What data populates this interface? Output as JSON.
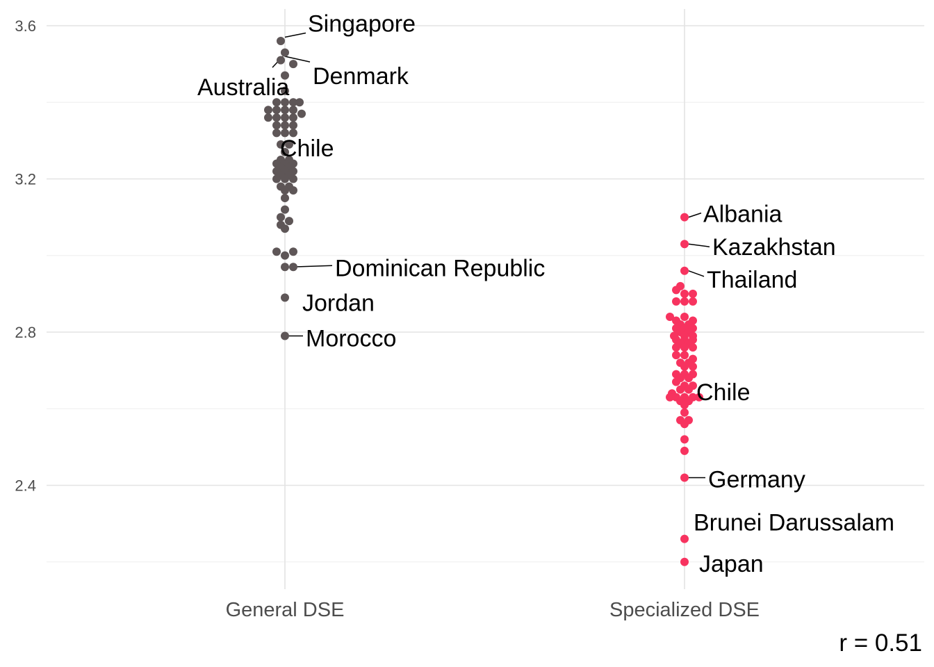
{
  "chart_data": {
    "type": "scatter",
    "categories": [
      "General DSE",
      "Specialized DSE"
    ],
    "ylim": [
      2.18,
      3.62
    ],
    "y_ticks": [
      "2.4",
      "2.8",
      "3.2",
      "3.6"
    ],
    "y_tick_values": [
      2.4,
      2.8,
      3.2,
      3.6
    ],
    "grid": true,
    "legend": "none",
    "colors": {
      "General DSE": "#5e5657",
      "Specialized DSE": "#f7335f"
    },
    "series": [
      {
        "category": "General DSE",
        "points": [
          [
            -0.01,
            3.56
          ],
          [
            0.0,
            3.53
          ],
          [
            -0.01,
            3.51
          ],
          [
            0.02,
            3.5
          ],
          [
            0.0,
            3.47
          ],
          [
            0.0,
            3.43
          ],
          [
            -0.02,
            3.4
          ],
          [
            0.0,
            3.4
          ],
          [
            0.02,
            3.4
          ],
          [
            0.035,
            3.4
          ],
          [
            -0.04,
            3.38
          ],
          [
            -0.02,
            3.38
          ],
          [
            0.0,
            3.38
          ],
          [
            0.02,
            3.38
          ],
          [
            0.04,
            3.37
          ],
          [
            -0.04,
            3.36
          ],
          [
            -0.02,
            3.36
          ],
          [
            0.0,
            3.36
          ],
          [
            0.02,
            3.36
          ],
          [
            -0.02,
            3.34
          ],
          [
            0.0,
            3.34
          ],
          [
            0.02,
            3.34
          ],
          [
            -0.02,
            3.32
          ],
          [
            0.0,
            3.32
          ],
          [
            0.02,
            3.32
          ],
          [
            -0.01,
            3.29
          ],
          [
            0.01,
            3.29
          ],
          [
            0.0,
            3.27
          ],
          [
            -0.01,
            3.25
          ],
          [
            0.01,
            3.25
          ],
          [
            -0.02,
            3.24
          ],
          [
            0.0,
            3.24
          ],
          [
            0.02,
            3.24
          ],
          [
            -0.01,
            3.23
          ],
          [
            0.01,
            3.23
          ],
          [
            -0.02,
            3.22
          ],
          [
            0.0,
            3.22
          ],
          [
            0.02,
            3.22
          ],
          [
            -0.01,
            3.21
          ],
          [
            0.01,
            3.21
          ],
          [
            0.0,
            3.2
          ],
          [
            -0.02,
            3.2
          ],
          [
            0.02,
            3.2
          ],
          [
            -0.01,
            3.18
          ],
          [
            0.01,
            3.18
          ],
          [
            0.0,
            3.17
          ],
          [
            0.02,
            3.17
          ],
          [
            0.0,
            3.15
          ],
          [
            0.0,
            3.12
          ],
          [
            -0.01,
            3.1
          ],
          [
            0.01,
            3.09
          ],
          [
            -0.01,
            3.08
          ],
          [
            0.0,
            3.07
          ],
          [
            -0.02,
            3.01
          ],
          [
            0.0,
            3.0
          ],
          [
            0.02,
            3.01
          ],
          [
            0.0,
            2.97
          ],
          [
            0.02,
            2.97
          ],
          [
            0.0,
            2.89
          ],
          [
            0.0,
            2.79
          ]
        ],
        "labels": [
          {
            "text": "Singapore",
            "y": 3.57
          },
          {
            "text": "Denmark",
            "y": 3.52
          },
          {
            "text": "Australia",
            "y": 3.52
          },
          {
            "text": "Chile",
            "y": 3.31
          },
          {
            "text": "Dominican Republic",
            "y": 2.97
          },
          {
            "text": "Jordan",
            "y": 2.89
          },
          {
            "text": "Morocco",
            "y": 2.79
          }
        ]
      },
      {
        "category": "Specialized DSE",
        "points": [
          [
            0.0,
            3.1
          ],
          [
            0.0,
            3.03
          ],
          [
            0.0,
            2.96
          ],
          [
            -0.01,
            2.92
          ],
          [
            -0.02,
            2.91
          ],
          [
            0.0,
            2.9
          ],
          [
            0.02,
            2.9
          ],
          [
            -0.02,
            2.88
          ],
          [
            0.0,
            2.88
          ],
          [
            0.02,
            2.88
          ],
          [
            -0.035,
            2.84
          ],
          [
            -0.02,
            2.83
          ],
          [
            0.0,
            2.84
          ],
          [
            0.02,
            2.83
          ],
          [
            -0.01,
            2.82
          ],
          [
            0.01,
            2.82
          ],
          [
            -0.02,
            2.81
          ],
          [
            0.0,
            2.81
          ],
          [
            0.02,
            2.81
          ],
          [
            -0.01,
            2.8
          ],
          [
            0.01,
            2.8
          ],
          [
            -0.025,
            2.79
          ],
          [
            0.0,
            2.79
          ],
          [
            0.02,
            2.79
          ],
          [
            -0.02,
            2.78
          ],
          [
            0.0,
            2.78
          ],
          [
            0.02,
            2.78
          ],
          [
            -0.01,
            2.77
          ],
          [
            0.01,
            2.77
          ],
          [
            -0.02,
            2.76
          ],
          [
            0.0,
            2.76
          ],
          [
            0.02,
            2.76
          ],
          [
            -0.02,
            2.74
          ],
          [
            0.0,
            2.74
          ],
          [
            0.02,
            2.73
          ],
          [
            -0.01,
            2.72
          ],
          [
            0.01,
            2.72
          ],
          [
            0.0,
            2.71
          ],
          [
            0.02,
            2.71
          ],
          [
            -0.02,
            2.69
          ],
          [
            0.0,
            2.69
          ],
          [
            0.02,
            2.69
          ],
          [
            -0.01,
            2.68
          ],
          [
            0.01,
            2.68
          ],
          [
            -0.02,
            2.67
          ],
          [
            0.0,
            2.66
          ],
          [
            0.02,
            2.66
          ],
          [
            -0.03,
            2.64
          ],
          [
            -0.01,
            2.65
          ],
          [
            0.01,
            2.65
          ],
          [
            -0.035,
            2.63
          ],
          [
            -0.02,
            2.63
          ],
          [
            0.0,
            2.63
          ],
          [
            0.02,
            2.63
          ],
          [
            0.035,
            2.63
          ],
          [
            -0.01,
            2.62
          ],
          [
            0.01,
            2.62
          ],
          [
            0.0,
            2.61
          ],
          [
            0.0,
            2.59
          ],
          [
            -0.01,
            2.57
          ],
          [
            0.01,
            2.57
          ],
          [
            0.0,
            2.56
          ],
          [
            0.0,
            2.52
          ],
          [
            0.0,
            2.49
          ],
          [
            0.0,
            2.42
          ],
          [
            0.0,
            2.26
          ],
          [
            0.0,
            2.2
          ]
        ],
        "labels": [
          {
            "text": "Albania",
            "y": 3.1
          },
          {
            "text": "Kazakhstan",
            "y": 3.03
          },
          {
            "text": "Thailand",
            "y": 2.96
          },
          {
            "text": "Chile",
            "y": 2.64
          },
          {
            "text": "Germany",
            "y": 2.42
          },
          {
            "text": "Brunei Darussalam",
            "y": 2.26
          },
          {
            "text": "Japan",
            "y": 2.2
          }
        ]
      }
    ],
    "annotation": "r = 0.51"
  }
}
